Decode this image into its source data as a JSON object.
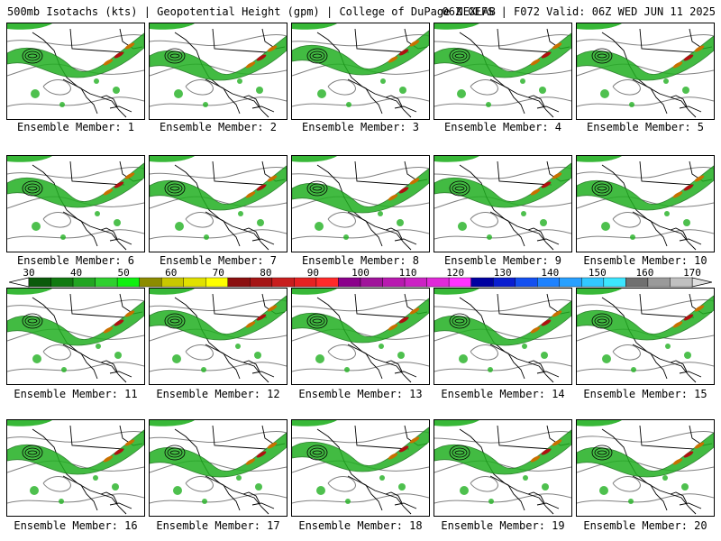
{
  "header": {
    "left": "500mb Isotachs (kts) | Geopotential Height (gpm) | College of DuPage NEXLAB",
    "right": "06Z GEFS | F072 Valid: 06Z WED JUN 11 2025"
  },
  "member_label": "Ensemble Member:",
  "members": [
    "1",
    "2",
    "3",
    "4",
    "5",
    "6",
    "7",
    "8",
    "9",
    "10",
    "11",
    "12",
    "13",
    "14",
    "15",
    "16",
    "17",
    "18",
    "19",
    "20"
  ],
  "colorbar": {
    "labels": [
      "30",
      "40",
      "50",
      "60",
      "70",
      "80",
      "90",
      "100",
      "110",
      "120",
      "130",
      "140",
      "150",
      "160",
      "170"
    ],
    "colors": [
      "#0b5a0b",
      "#117a11",
      "#22a522",
      "#2fd02f",
      "#10f010",
      "#8c8c00",
      "#c8c800",
      "#e0e000",
      "#ffff00",
      "#8b1010",
      "#a51515",
      "#c81e1e",
      "#e52222",
      "#ff2a2a",
      "#8b008b",
      "#a0149b",
      "#b81ab0",
      "#cc22c4",
      "#e02ad8",
      "#ff33ff",
      "#0000a0",
      "#0a1ed0",
      "#1450f0",
      "#1e82ff",
      "#28a0ff",
      "#32c8ff",
      "#3ce6ff",
      "#707070",
      "#9a9a9a",
      "#c0c0c0"
    ]
  },
  "map_colors": {
    "jet_green": "#22b022",
    "jet_dark": "#0f6e0f",
    "jet_orange": "#c87000",
    "jet_red": "#b01010",
    "contour": "#808080",
    "coast": "#000000"
  }
}
